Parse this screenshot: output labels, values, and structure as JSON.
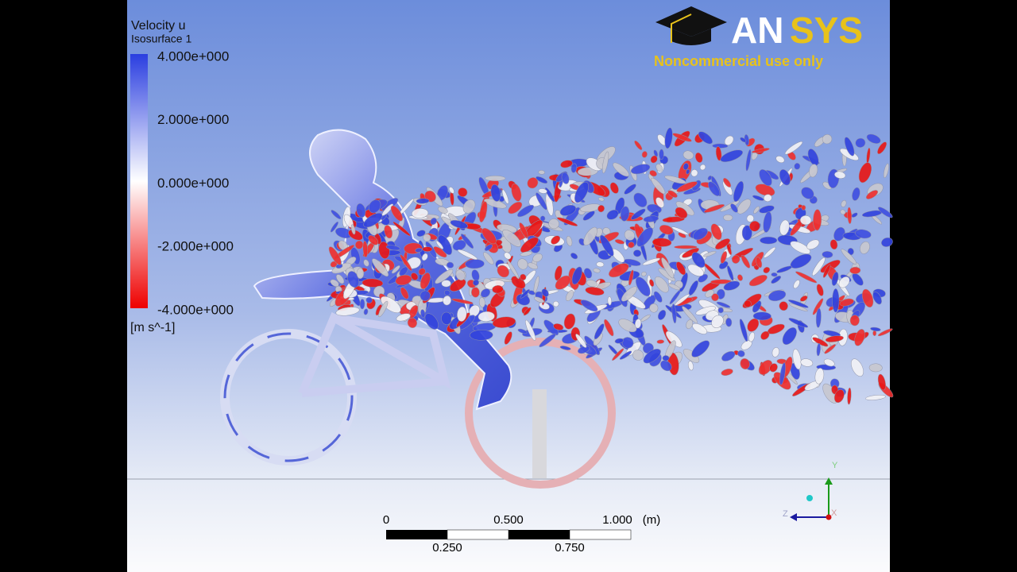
{
  "legend": {
    "title": "Velocity u",
    "subtitle": "Isosurface 1",
    "ticks": [
      "4.000e+000",
      "2.000e+000",
      "0.000e+000",
      "-2.000e+000",
      "-4.000e+000"
    ],
    "unit": "[m s^-1]"
  },
  "logo": {
    "part1": "AN",
    "part2": "SYS",
    "note": "Noncommercial use only"
  },
  "scale_bar": {
    "top_labels": [
      "0",
      "0.500",
      "1.000"
    ],
    "unit": "(m)",
    "bottom_labels": [
      "0.250",
      "0.750"
    ]
  },
  "triad": {
    "y": "Y",
    "z": "Z",
    "x": "X"
  }
}
